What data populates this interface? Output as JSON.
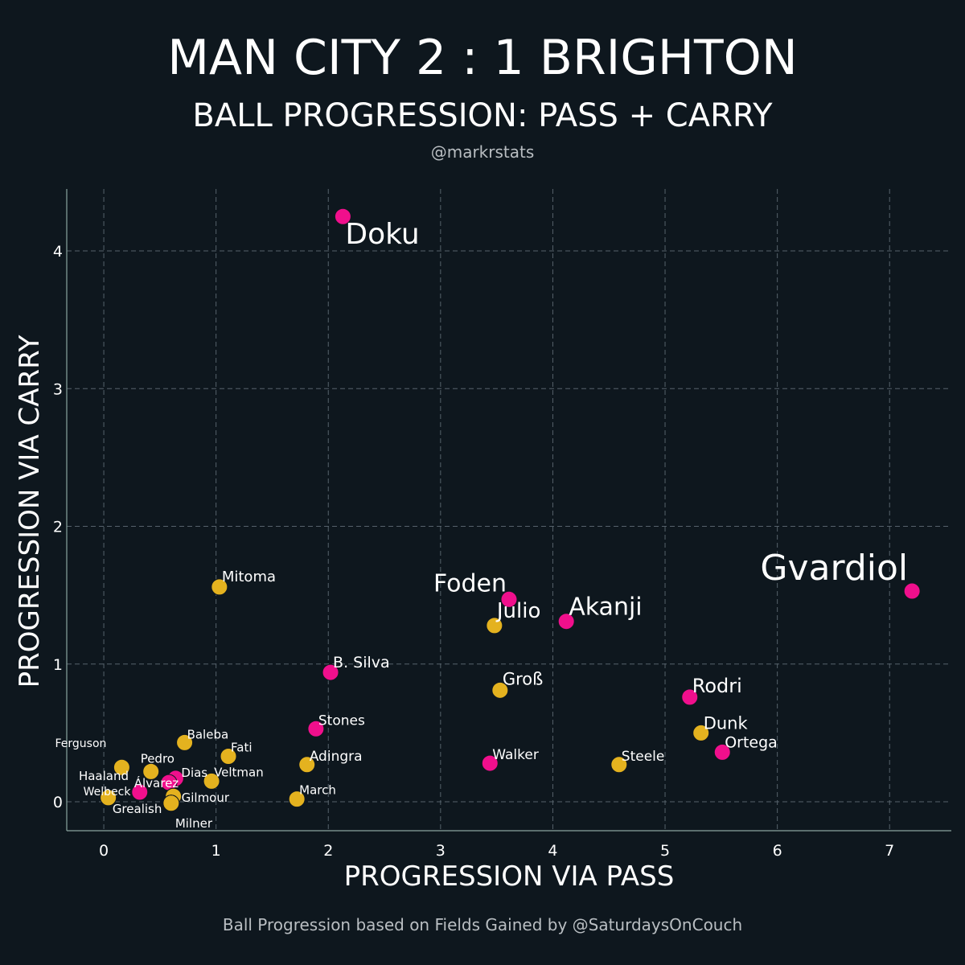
{
  "chart_data": {
    "type": "scatter",
    "title": "MAN CITY 2 : 1 BRIGHTON",
    "subtitle": "BALL PROGRESSION: PASS + CARRY",
    "credit": "@markrstats",
    "footnote": "Ball Progression based on Fields Gained by @SaturdaysOnCouch",
    "xlabel": "PROGRESSION VIA PASS",
    "ylabel": "PROGRESSION VIA CARRY",
    "xlim": [
      -0.33,
      7.55
    ],
    "ylim": [
      -0.21,
      4.45
    ],
    "xticks": [
      0,
      1,
      2,
      3,
      4,
      5,
      6,
      7
    ],
    "yticks": [
      0,
      1,
      2,
      3,
      4
    ],
    "grid": true,
    "colors": {
      "man_city": "#f00f8c",
      "brighton": "#e4b21f"
    },
    "points": [
      {
        "name": "Doku",
        "team": "man_city",
        "x": 2.13,
        "y": 4.25
      },
      {
        "name": "Gvardiol",
        "team": "man_city",
        "x": 7.2,
        "y": 1.53
      },
      {
        "name": "Foden",
        "team": "man_city",
        "x": 3.61,
        "y": 1.47
      },
      {
        "name": "Akanji",
        "team": "man_city",
        "x": 4.12,
        "y": 1.31
      },
      {
        "name": "Julio",
        "team": "brighton",
        "x": 3.48,
        "y": 1.28
      },
      {
        "name": "Mitoma",
        "team": "brighton",
        "x": 1.03,
        "y": 1.56
      },
      {
        "name": "B. Silva",
        "team": "man_city",
        "x": 2.02,
        "y": 0.94
      },
      {
        "name": "Groß",
        "team": "brighton",
        "x": 3.53,
        "y": 0.81
      },
      {
        "name": "Rodri",
        "team": "man_city",
        "x": 5.22,
        "y": 0.76
      },
      {
        "name": "Dunk",
        "team": "brighton",
        "x": 5.32,
        "y": 0.5
      },
      {
        "name": "Ortega",
        "team": "man_city",
        "x": 5.51,
        "y": 0.36
      },
      {
        "name": "Stones",
        "team": "man_city",
        "x": 1.89,
        "y": 0.53
      },
      {
        "name": "Walker",
        "team": "man_city",
        "x": 3.44,
        "y": 0.28
      },
      {
        "name": "Steele",
        "team": "brighton",
        "x": 4.59,
        "y": 0.27
      },
      {
        "name": "Adingra",
        "team": "brighton",
        "x": 1.81,
        "y": 0.27
      },
      {
        "name": "March",
        "team": "brighton",
        "x": 1.72,
        "y": 0.02
      },
      {
        "name": "Baleba",
        "team": "brighton",
        "x": 0.72,
        "y": 0.43
      },
      {
        "name": "Fati",
        "team": "brighton",
        "x": 1.11,
        "y": 0.33
      },
      {
        "name": "Veltman",
        "team": "brighton",
        "x": 0.96,
        "y": 0.15
      },
      {
        "name": "Ferguson",
        "team": "brighton",
        "x": 0.16,
        "y": 0.25
      },
      {
        "name": "Pedro",
        "team": "brighton",
        "x": 0.42,
        "y": 0.22
      },
      {
        "name": "Dias",
        "team": "man_city",
        "x": 0.64,
        "y": 0.17
      },
      {
        "name": "Haaland",
        "team": "man_city",
        "x": 0.58,
        "y": 0.14
      },
      {
        "name": "Álvarez",
        "team": "man_city",
        "x": 0.32,
        "y": 0.07
      },
      {
        "name": "Welbeck",
        "team": "brighton",
        "x": 0.04,
        "y": 0.03
      },
      {
        "name": "Gilmour",
        "team": "brighton",
        "x": 0.62,
        "y": 0.04
      },
      {
        "name": "Grealish",
        "team": "man_city",
        "x": 0.6,
        "y": -0.01
      },
      {
        "name": "Milner",
        "team": "brighton",
        "x": 0.6,
        "y": -0.01
      }
    ]
  }
}
